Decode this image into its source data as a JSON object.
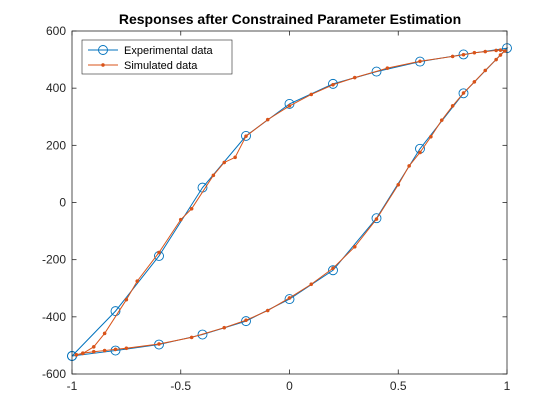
{
  "chart_data": {
    "type": "line",
    "title": "Responses after Constrained Parameter Estimation",
    "xlabel": "",
    "ylabel": "",
    "xlim": [
      -1,
      1
    ],
    "ylim": [
      -600,
      600
    ],
    "x_ticks": [
      -1,
      -0.5,
      0,
      0.5,
      1
    ],
    "x_tick_labels": [
      "-1",
      "-0.5",
      "0",
      "0.5",
      "1"
    ],
    "y_ticks": [
      -600,
      -400,
      -200,
      0,
      200,
      400,
      600
    ],
    "y_tick_labels": [
      "-600",
      "-400",
      "-200",
      "0",
      "200",
      "400",
      "600"
    ],
    "grid": false,
    "legend_position": "top-left",
    "series": [
      {
        "name": "Experimental data",
        "color": "#0072BD",
        "marker": "circle",
        "points": [
          [
            -1.0,
            -537
          ],
          [
            -0.8,
            -518
          ],
          [
            -0.6,
            -497
          ],
          [
            -0.4,
            -462
          ],
          [
            -0.2,
            -415
          ],
          [
            0.0,
            -338
          ],
          [
            0.2,
            -237
          ],
          [
            0.4,
            -55
          ],
          [
            0.6,
            188
          ],
          [
            0.8,
            382
          ],
          [
            1.0,
            540
          ],
          [
            0.8,
            518
          ],
          [
            0.6,
            493
          ],
          [
            0.4,
            458
          ],
          [
            0.2,
            415
          ],
          [
            0.0,
            345
          ],
          [
            -0.2,
            233
          ],
          [
            -0.4,
            52
          ],
          [
            -0.6,
            -187
          ],
          [
            -0.8,
            -380
          ],
          [
            -1.0,
            -537
          ]
        ]
      },
      {
        "name": "Simulated data",
        "color": "#D95319",
        "marker": "dot",
        "points": [
          [
            -0.98,
            -533
          ],
          [
            -0.95,
            -527
          ],
          [
            -0.9,
            -522
          ],
          [
            -0.85,
            -518
          ],
          [
            -0.8,
            -514
          ],
          [
            -0.75,
            -510
          ],
          [
            -0.6,
            -495
          ],
          [
            -0.45,
            -472
          ],
          [
            -0.3,
            -438
          ],
          [
            -0.2,
            -412
          ],
          [
            -0.1,
            -378
          ],
          [
            0.0,
            -334
          ],
          [
            0.1,
            -286
          ],
          [
            0.2,
            -230
          ],
          [
            0.3,
            -155
          ],
          [
            0.4,
            -58
          ],
          [
            0.5,
            62
          ],
          [
            0.55,
            128
          ],
          [
            0.6,
            175
          ],
          [
            0.65,
            230
          ],
          [
            0.7,
            288
          ],
          [
            0.75,
            338
          ],
          [
            0.8,
            383
          ],
          [
            0.85,
            422
          ],
          [
            0.9,
            462
          ],
          [
            0.95,
            500
          ],
          [
            0.97,
            516
          ],
          [
            0.99,
            530
          ],
          [
            0.97,
            533
          ],
          [
            0.95,
            532
          ],
          [
            0.9,
            528
          ],
          [
            0.85,
            524
          ],
          [
            0.8,
            517
          ],
          [
            0.75,
            511
          ],
          [
            0.6,
            494
          ],
          [
            0.45,
            470
          ],
          [
            0.3,
            437
          ],
          [
            0.2,
            412
          ],
          [
            0.1,
            378
          ],
          [
            0.0,
            338
          ],
          [
            -0.1,
            290
          ],
          [
            -0.2,
            232
          ],
          [
            -0.25,
            158
          ],
          [
            -0.3,
            140
          ],
          [
            -0.35,
            95
          ],
          [
            -0.45,
            -22
          ],
          [
            -0.5,
            -60
          ],
          [
            -0.6,
            -175
          ],
          [
            -0.7,
            -275
          ],
          [
            -0.75,
            -340
          ],
          [
            -0.85,
            -458
          ],
          [
            -0.9,
            -505
          ],
          [
            -0.95,
            -528
          ],
          [
            -0.98,
            -533
          ]
        ]
      }
    ]
  }
}
